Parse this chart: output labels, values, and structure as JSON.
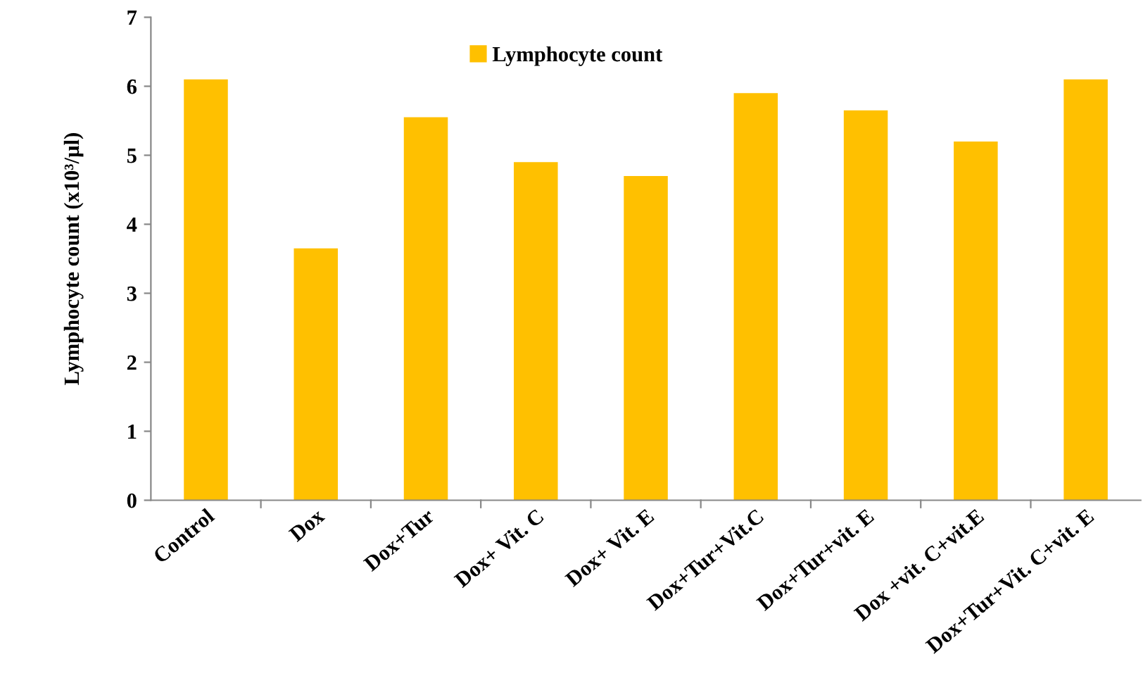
{
  "chart_data": {
    "type": "bar",
    "ylabel": "Lymphocyte count (x10³/µl)",
    "categories": [
      "Control",
      "Dox",
      "Dox+Tur",
      "Dox+ Vit. C",
      "Dox+ Vit. E",
      "Dox+Tur+Vit.C",
      "Dox+Tur+vit. E",
      "Dox +vit. C+vit.E",
      "Dox+Tur+Vit. C+vit. E"
    ],
    "series": [
      {
        "name": "Lymphocyte count",
        "color": "#ffc000",
        "values": [
          6.1,
          3.65,
          5.55,
          4.9,
          4.7,
          5.9,
          5.65,
          5.2,
          6.1
        ]
      }
    ],
    "ylim": [
      0,
      7
    ],
    "yticks": [
      0,
      1,
      2,
      3,
      4,
      5,
      6,
      7
    ],
    "grid": false,
    "legend": "top"
  }
}
